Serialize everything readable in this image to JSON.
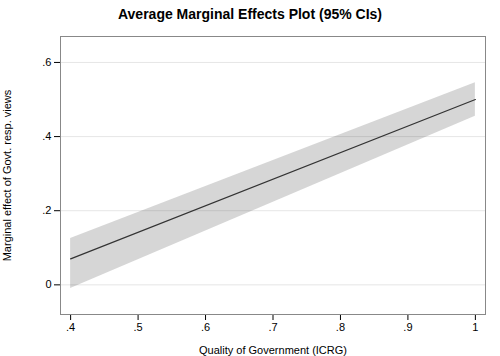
{
  "chart_data": {
    "type": "line",
    "title": "Average Marginal Effects Plot (95% CIs)",
    "xlabel": "Quality of Government (ICRG)",
    "ylabel": "Marginal effect of Govt. resp. views",
    "x": [
      0.4,
      1.0
    ],
    "values": [
      0.07,
      0.5
    ],
    "ci_lower": [
      -0.01,
      0.455
    ],
    "ci_upper": [
      0.125,
      0.545
    ],
    "color": "#333333",
    "xlim": [
      0.385,
      1.015
    ],
    "ylim": [
      -0.08,
      0.67
    ],
    "xticks": [
      {
        "value": 0.4,
        "label": ".4"
      },
      {
        "value": 0.5,
        "label": ".5"
      },
      {
        "value": 0.6,
        "label": ".6"
      },
      {
        "value": 0.7,
        "label": ".7"
      },
      {
        "value": 0.8,
        "label": ".8"
      },
      {
        "value": 0.9,
        "label": ".9"
      },
      1
    ],
    "yticks": [
      0,
      {
        "value": 0.2,
        "label": ".2"
      },
      {
        "value": 0.4,
        "label": ".4"
      },
      {
        "value": 0.6,
        "label": ".6"
      }
    ],
    "grid": true
  }
}
